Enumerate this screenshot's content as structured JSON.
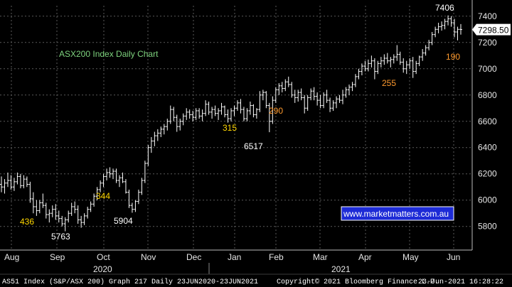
{
  "chart_data": {
    "type": "line",
    "style": "ohlc-bars",
    "title": "ASX200 Index Daily Chart",
    "ylim": [
      5620,
      7480
    ],
    "y_ticks": [
      5800,
      6000,
      6200,
      6400,
      6600,
      6800,
      7000,
      7200,
      7400
    ],
    "x_ticks": [
      "Aug",
      "Sep",
      "Oct",
      "Nov",
      "Dec",
      "Jan",
      "Feb",
      "Mar",
      "Apr",
      "May",
      "Jun"
    ],
    "year_labels": [
      "2020",
      "2021"
    ],
    "last_price": "7298.50",
    "website": "www.marketmatters.com.au",
    "footer_left": "AS51 Index (S&P/ASX 200) Graph 217  Daily 23JUN2020-23JUN2021",
    "footer_center": "Copyright© 2021 Bloomberg Finance L.P.",
    "footer_right": "23-Jun-2021 16:28:22",
    "series": [
      {
        "values": [
          [
            6120,
            6180,
            6060,
            6100
          ],
          [
            6100,
            6160,
            6050,
            6130
          ],
          [
            6130,
            6210,
            6100,
            6150
          ],
          [
            6150,
            6190,
            6080,
            6100
          ],
          [
            6100,
            6170,
            6070,
            6140
          ],
          [
            6140,
            6210,
            6120,
            6180
          ],
          [
            6180,
            6200,
            6090,
            6110
          ],
          [
            6110,
            6190,
            6090,
            6160
          ],
          [
            6160,
            6180,
            6100,
            6120
          ],
          [
            6120,
            6140,
            5980,
            6010
          ],
          [
            6010,
            6060,
            5900,
            5950
          ],
          [
            5950,
            6000,
            5880,
            5920
          ],
          [
            5920,
            6000,
            5900,
            5980
          ],
          [
            5980,
            6050,
            5940,
            5960
          ],
          [
            5960,
            5980,
            5860,
            5890
          ],
          [
            5890,
            5930,
            5830,
            5900
          ],
          [
            5900,
            5960,
            5870,
            5930
          ],
          [
            5930,
            5970,
            5850,
            5880
          ],
          [
            5880,
            5920,
            5830,
            5860
          ],
          [
            5860,
            5880,
            5800,
            5820
          ],
          [
            5820,
            5870,
            5763,
            5850
          ],
          [
            5850,
            5920,
            5830,
            5900
          ],
          [
            5900,
            5980,
            5880,
            5950
          ],
          [
            5950,
            5990,
            5900,
            5930
          ],
          [
            5930,
            5960,
            5820,
            5850
          ],
          [
            5850,
            5880,
            5790,
            5830
          ],
          [
            5830,
            5900,
            5810,
            5880
          ],
          [
            5880,
            5950,
            5860,
            5930
          ],
          [
            5930,
            5990,
            5910,
            5970
          ],
          [
            5970,
            6050,
            5950,
            6030
          ],
          [
            6030,
            6100,
            6000,
            6080
          ],
          [
            6080,
            6150,
            6060,
            6130
          ],
          [
            6130,
            6200,
            6100,
            6180
          ],
          [
            6180,
            6240,
            6150,
            6210
          ],
          [
            6210,
            6250,
            6170,
            6200
          ],
          [
            6200,
            6240,
            6160,
            6220
          ],
          [
            6220,
            6240,
            6130,
            6150
          ],
          [
            6150,
            6190,
            6100,
            6170
          ],
          [
            6170,
            6210,
            6130,
            6140
          ],
          [
            6140,
            6160,
            6050,
            6060
          ],
          [
            6060,
            6080,
            5940,
            5960
          ],
          [
            5960,
            5980,
            5904,
            5930
          ],
          [
            5930,
            6000,
            5910,
            5990
          ],
          [
            5990,
            6080,
            5970,
            6060
          ],
          [
            6060,
            6170,
            6040,
            6150
          ],
          [
            6150,
            6300,
            6130,
            6280
          ],
          [
            6280,
            6420,
            6260,
            6400
          ],
          [
            6400,
            6480,
            6360,
            6450
          ],
          [
            6450,
            6520,
            6410,
            6490
          ],
          [
            6490,
            6540,
            6450,
            6510
          ],
          [
            6510,
            6560,
            6480,
            6540
          ],
          [
            6540,
            6580,
            6500,
            6560
          ],
          [
            6560,
            6620,
            6530,
            6600
          ],
          [
            6600,
            6720,
            6580,
            6690
          ],
          [
            6690,
            6710,
            6600,
            6630
          ],
          [
            6630,
            6650,
            6520,
            6560
          ],
          [
            6560,
            6620,
            6530,
            6600
          ],
          [
            6600,
            6660,
            6570,
            6640
          ],
          [
            6640,
            6700,
            6610,
            6670
          ],
          [
            6670,
            6690,
            6620,
            6650
          ],
          [
            6650,
            6680,
            6600,
            6630
          ],
          [
            6630,
            6700,
            6610,
            6680
          ],
          [
            6680,
            6700,
            6620,
            6640
          ],
          [
            6640,
            6690,
            6600,
            6660
          ],
          [
            6660,
            6760,
            6640,
            6730
          ],
          [
            6730,
            6750,
            6650,
            6670
          ],
          [
            6670,
            6710,
            6620,
            6690
          ],
          [
            6690,
            6720,
            6640,
            6660
          ],
          [
            6660,
            6700,
            6610,
            6680
          ],
          [
            6680,
            6740,
            6650,
            6710
          ],
          [
            6710,
            6720,
            6630,
            6650
          ],
          [
            6650,
            6690,
            6590,
            6620
          ],
          [
            6620,
            6700,
            6600,
            6680
          ],
          [
            6680,
            6720,
            6640,
            6700
          ],
          [
            6700,
            6760,
            6680,
            6740
          ],
          [
            6740,
            6770,
            6660,
            6690
          ],
          [
            6690,
            6710,
            6600,
            6620
          ],
          [
            6620,
            6700,
            6600,
            6680
          ],
          [
            6680,
            6750,
            6650,
            6720
          ],
          [
            6720,
            6730,
            6630,
            6650
          ],
          [
            6650,
            6700,
            6620,
            6690
          ],
          [
            6690,
            6830,
            6670,
            6800
          ],
          [
            6800,
            6840,
            6760,
            6820
          ],
          [
            6820,
            6830,
            6700,
            6720
          ],
          [
            6720,
            6740,
            6517,
            6600
          ],
          [
            6600,
            6790,
            6580,
            6760
          ],
          [
            6760,
            6860,
            6740,
            6840
          ],
          [
            6840,
            6890,
            6800,
            6870
          ],
          [
            6870,
            6900,
            6820,
            6850
          ],
          [
            6850,
            6920,
            6830,
            6900
          ],
          [
            6900,
            6940,
            6860,
            6880
          ],
          [
            6880,
            6900,
            6780,
            6800
          ],
          [
            6800,
            6840,
            6740,
            6780
          ],
          [
            6780,
            6840,
            6750,
            6820
          ],
          [
            6820,
            6850,
            6760,
            6780
          ],
          [
            6780,
            6800,
            6660,
            6700
          ],
          [
            6700,
            6800,
            6680,
            6780
          ],
          [
            6780,
            6850,
            6760,
            6830
          ],
          [
            6830,
            6860,
            6760,
            6790
          ],
          [
            6790,
            6820,
            6720,
            6760
          ],
          [
            6760,
            6800,
            6700,
            6720
          ],
          [
            6720,
            6820,
            6700,
            6800
          ],
          [
            6800,
            6840,
            6740,
            6760
          ],
          [
            6760,
            6780,
            6670,
            6700
          ],
          [
            6700,
            6760,
            6680,
            6740
          ],
          [
            6740,
            6790,
            6700,
            6770
          ],
          [
            6770,
            6800,
            6740,
            6760
          ],
          [
            6760,
            6840,
            6730,
            6800
          ],
          [
            6800,
            6860,
            6780,
            6840
          ],
          [
            6840,
            6880,
            6800,
            6860
          ],
          [
            6860,
            6900,
            6830,
            6880
          ],
          [
            6880,
            6960,
            6860,
            6940
          ],
          [
            6940,
            7000,
            6920,
            6980
          ],
          [
            6980,
            7040,
            6950,
            7020
          ],
          [
            7020,
            7060,
            6980,
            7000
          ],
          [
            7000,
            7070,
            6980,
            7040
          ],
          [
            7040,
            7100,
            7010,
            7060
          ],
          [
            7060,
            7080,
            6920,
            6980
          ],
          [
            6980,
            7060,
            6960,
            7040
          ],
          [
            7040,
            7090,
            7010,
            7060
          ],
          [
            7060,
            7110,
            7030,
            7080
          ],
          [
            7080,
            7120,
            7040,
            7060
          ],
          [
            7060,
            7090,
            7010,
            7070
          ],
          [
            7070,
            7110,
            7040,
            7090
          ],
          [
            7090,
            7180,
            7060,
            7110
          ],
          [
            7110,
            7130,
            7030,
            7050
          ],
          [
            7050,
            7080,
            6970,
            7000
          ],
          [
            7000,
            7060,
            6960,
            7030
          ],
          [
            7030,
            7080,
            7000,
            7060
          ],
          [
            7060,
            7090,
            6930,
            6980
          ],
          [
            6980,
            7060,
            6960,
            7040
          ],
          [
            7040,
            7100,
            7020,
            7090
          ],
          [
            7090,
            7150,
            7060,
            7120
          ],
          [
            7120,
            7180,
            7100,
            7160
          ],
          [
            7160,
            7220,
            7140,
            7200
          ],
          [
            7200,
            7280,
            7180,
            7260
          ],
          [
            7260,
            7320,
            7240,
            7300
          ],
          [
            7300,
            7350,
            7270,
            7320
          ],
          [
            7320,
            7360,
            7290,
            7330
          ],
          [
            7330,
            7380,
            7300,
            7360
          ],
          [
            7360,
            7406,
            7330,
            7380
          ],
          [
            7380,
            7400,
            7320,
            7350
          ],
          [
            7350,
            7380,
            7240,
            7280
          ],
          [
            7280,
            7320,
            7216,
            7300
          ],
          [
            7300,
            7340,
            7260,
            7298.5
          ]
        ]
      }
    ],
    "annotations": [
      {
        "text": "436",
        "color": "#ffd700"
      },
      {
        "text": "5763",
        "color": "#ffffff"
      },
      {
        "text": "344",
        "color": "#ffd700"
      },
      {
        "text": "5904",
        "color": "#ffffff"
      },
      {
        "text": "315",
        "color": "#ffd700"
      },
      {
        "text": "6517",
        "color": "#ffffff"
      },
      {
        "text": "290",
        "color": "#ff9a2e"
      },
      {
        "text": "255",
        "color": "#ff9a2e"
      },
      {
        "text": "190",
        "color": "#ff9a2e"
      },
      {
        "text": "7406",
        "color": "#ffffff"
      }
    ]
  },
  "colors": {
    "background": "#000000",
    "bars": "#ffffff",
    "grid": "#5a5a5a",
    "title": "#7ed37e",
    "price_box": "#ffffff",
    "website_box": "#1d2bd6",
    "footer_bg": "#000000"
  }
}
